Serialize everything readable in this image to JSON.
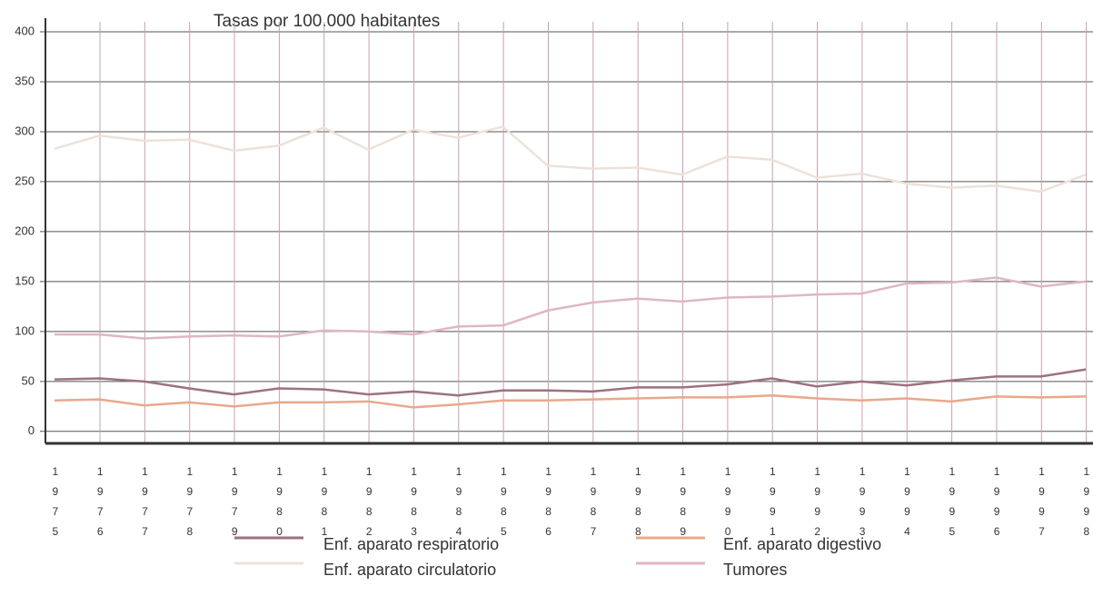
{
  "chart_data": {
    "type": "line",
    "title": "Tasas por 100.000 habitantes",
    "categories": [
      "1975",
      "1976",
      "1977",
      "1978",
      "1979",
      "1980",
      "1981",
      "1982",
      "1983",
      "1984",
      "1985",
      "1986",
      "1987",
      "1988",
      "1989",
      "1990",
      "1991",
      "1992",
      "1993",
      "1994",
      "1995",
      "1996",
      "1997",
      "1998"
    ],
    "series": [
      {
        "name": "Enf. aparato respiratorio",
        "color": "#9c7282",
        "values": [
          52,
          53,
          50,
          43,
          37,
          43,
          42,
          37,
          40,
          36,
          41,
          41,
          40,
          44,
          44,
          47,
          53,
          45,
          50,
          46,
          51,
          55,
          55,
          62
        ]
      },
      {
        "name": "Enf. aparato circulatorio",
        "color": "#ece2da",
        "values": [
          283,
          296,
          291,
          292,
          281,
          286,
          304,
          282,
          302,
          294,
          305,
          266,
          263,
          264,
          257,
          275,
          272,
          254,
          258,
          248,
          244,
          246,
          240,
          257
        ]
      },
      {
        "name": "Enf. aparato digestivo",
        "color": "#e8a88a",
        "values": [
          31,
          32,
          26,
          29,
          25,
          29,
          29,
          30,
          24,
          27,
          31,
          31,
          32,
          33,
          34,
          34,
          36,
          33,
          31,
          33,
          30,
          35,
          34,
          35
        ]
      },
      {
        "name": "Tumores",
        "color": "#dfb6c6",
        "values": [
          97,
          97,
          93,
          95,
          96,
          95,
          101,
          100,
          97,
          105,
          106,
          121,
          129,
          133,
          130,
          134,
          135,
          137,
          138,
          148,
          149,
          154,
          145,
          150
        ]
      }
    ],
    "ylim": [
      -12,
      410
    ],
    "yticks": [
      0,
      50,
      100,
      150,
      200,
      250,
      300,
      350,
      400
    ],
    "grid": true
  }
}
